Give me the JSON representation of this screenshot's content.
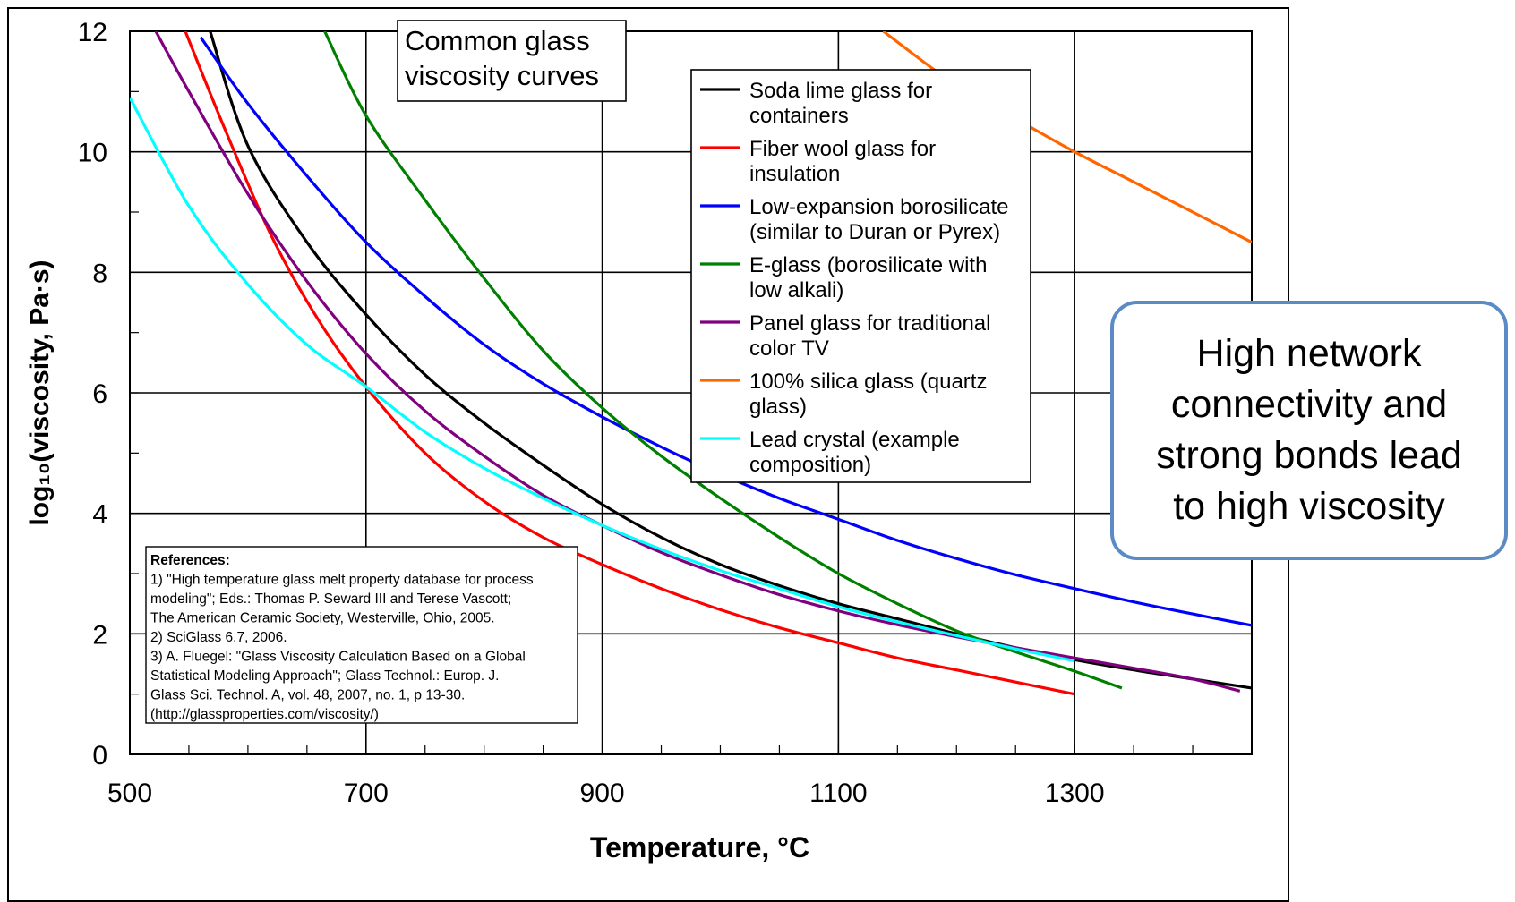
{
  "chart_data": {
    "type": "line",
    "title": "Common glass\nviscosity curves",
    "xlabel": "Temperature, °C",
    "ylabel": "log₁₀(viscosity, Pa·s)",
    "xlim": [
      500,
      1450
    ],
    "ylim": [
      0,
      12
    ],
    "x_ticks": [
      500,
      700,
      900,
      1100,
      1300
    ],
    "y_ticks": [
      0,
      2,
      4,
      6,
      8,
      10,
      12
    ],
    "grid": true,
    "legend_position": "upper-center",
    "series": [
      {
        "name": "Soda lime glass for\ncontainers",
        "color": "#000000",
        "x": [
          568,
          600,
          650,
          700,
          750,
          800,
          850,
          900,
          950,
          1000,
          1050,
          1100,
          1150,
          1200,
          1250,
          1300,
          1350,
          1400,
          1450
        ],
        "y": [
          12,
          10.1,
          8.5,
          7.3,
          6.3,
          5.5,
          4.8,
          4.15,
          3.6,
          3.15,
          2.8,
          2.5,
          2.25,
          2.0,
          1.77,
          1.57,
          1.4,
          1.25,
          1.1
        ]
      },
      {
        "name": "Fiber wool glass for\ninsulation",
        "color": "#ff0000",
        "x": [
          547,
          580,
          620,
          660,
          700,
          750,
          800,
          850,
          900,
          950,
          1000,
          1050,
          1100,
          1150,
          1200,
          1250,
          1300
        ],
        "y": [
          12,
          10.4,
          8.6,
          7.2,
          6.1,
          5.0,
          4.2,
          3.6,
          3.15,
          2.75,
          2.4,
          2.1,
          1.85,
          1.6,
          1.4,
          1.2,
          1.0
        ]
      },
      {
        "name": "Low-expansion borosilicate\n(similar to Duran or Pyrex)",
        "color": "#0000ff",
        "x": [
          560,
          600,
          650,
          700,
          750,
          800,
          850,
          900,
          950,
          1000,
          1050,
          1100,
          1150,
          1200,
          1250,
          1300,
          1350,
          1400,
          1450
        ],
        "y": [
          11.9,
          10.8,
          9.6,
          8.5,
          7.6,
          6.8,
          6.15,
          5.6,
          5.1,
          4.65,
          4.25,
          3.9,
          3.55,
          3.25,
          2.98,
          2.75,
          2.53,
          2.33,
          2.14
        ]
      },
      {
        "name": "E-glass (borosilicate with\nlow alkali)",
        "color": "#008000",
        "x": [
          665,
          700,
          750,
          800,
          850,
          900,
          950,
          1000,
          1050,
          1100,
          1150,
          1200,
          1250,
          1300,
          1340
        ],
        "y": [
          12,
          10.6,
          9.2,
          7.9,
          6.7,
          5.75,
          4.95,
          4.25,
          3.6,
          3.0,
          2.5,
          2.05,
          1.7,
          1.38,
          1.1
        ]
      },
      {
        "name": "Panel glass for traditional\ncolor TV",
        "color": "#800080",
        "x": [
          522,
          550,
          600,
          650,
          700,
          750,
          800,
          850,
          900,
          950,
          1000,
          1050,
          1100,
          1150,
          1200,
          1250,
          1300,
          1350,
          1400,
          1440
        ],
        "y": [
          12,
          11,
          9.3,
          7.85,
          6.65,
          5.7,
          4.95,
          4.3,
          3.8,
          3.35,
          2.98,
          2.65,
          2.38,
          2.15,
          1.95,
          1.77,
          1.6,
          1.43,
          1.25,
          1.05
        ]
      },
      {
        "name": "100% silica glass (quartz\nglass)",
        "color": "#ff6600",
        "x": [
          1138,
          1200,
          1250,
          1300,
          1350,
          1400,
          1450
        ],
        "y": [
          12,
          11.1,
          10.55,
          10.0,
          9.5,
          9.0,
          8.5
        ]
      },
      {
        "name": "Lead crystal (example\ncomposition)",
        "color": "#00ffff",
        "x": [
          500,
          550,
          600,
          650,
          700,
          750,
          800,
          850,
          900,
          950,
          1000,
          1050,
          1100,
          1150,
          1200,
          1250,
          1300
        ],
        "y": [
          10.9,
          9.1,
          7.8,
          6.8,
          6.1,
          5.35,
          4.75,
          4.25,
          3.8,
          3.4,
          3.05,
          2.75,
          2.45,
          2.2,
          1.97,
          1.75,
          1.55
        ]
      }
    ],
    "references": [
      "References:",
      "1) \"High temperature glass melt property database for process",
      "modeling\"; Eds.: Thomas P. Seward III and Terese Vascott;",
      "The American Ceramic Society, Westerville, Ohio, 2005.",
      "2) SciGlass 6.7, 2006.",
      "3) A. Fluegel: \"Glass Viscosity Calculation Based on a Global",
      "Statistical Modeling Approach\"; Glass Technol.: Europ. J.",
      "Glass Sci. Technol. A, vol. 48, 2007, no. 1, p 13-30.",
      "(http://glassproperties.com/viscosity/)"
    ]
  },
  "callout": {
    "text": "High network\nconnectivity and\nstrong bonds lead\nto high viscosity",
    "border_color": "#5b8ac4"
  }
}
